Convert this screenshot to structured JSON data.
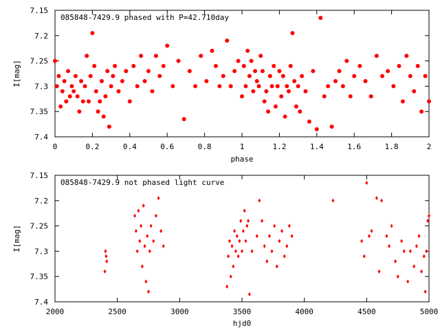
{
  "chart_data": [
    {
      "type": "scatter",
      "title": "085848-7429.9 phased with P=42.710day",
      "xlabel": "phase",
      "ylabel": "I[mag]",
      "xlim": [
        0,
        2
      ],
      "ylim": [
        7.15,
        7.4
      ],
      "y_inverted": true,
      "xticks": [
        "0",
        "0.2",
        "0.4",
        "0.6",
        "0.8",
        "1",
        "1.2",
        "1.4",
        "1.6",
        "1.8",
        "2"
      ],
      "yticks": [
        "7.15",
        "7.2",
        "7.25",
        "7.3",
        "7.35",
        "7.4"
      ],
      "marker": "filled-circle",
      "color": "#ff0000",
      "x": [
        0.0,
        0.01,
        0.02,
        0.03,
        0.04,
        0.05,
        0.06,
        0.07,
        0.08,
        0.09,
        0.1,
        0.11,
        0.12,
        0.13,
        0.14,
        0.15,
        0.16,
        0.17,
        0.18,
        0.19,
        0.2,
        0.21,
        0.22,
        0.23,
        0.24,
        0.25,
        0.26,
        0.27,
        0.28,
        0.29,
        0.3,
        0.31,
        0.32,
        0.34,
        0.36,
        0.38,
        0.4,
        0.42,
        0.44,
        0.46,
        0.48,
        0.5,
        0.52,
        0.54,
        0.56,
        0.58,
        0.6,
        0.63,
        0.66,
        0.69,
        0.72,
        0.75,
        0.78,
        0.81,
        0.84,
        0.86,
        0.88,
        0.9,
        0.92,
        0.94,
        0.96,
        0.98,
        1.0,
        1.01,
        1.02,
        1.03,
        1.04,
        1.05,
        1.06,
        1.07,
        1.08,
        1.09,
        1.1,
        1.11,
        1.12,
        1.13,
        1.14,
        1.15,
        1.16,
        1.17,
        1.18,
        1.19,
        1.2,
        1.21,
        1.22,
        1.23,
        1.24,
        1.25,
        1.26,
        1.27,
        1.28,
        1.29,
        1.3,
        1.31,
        1.32,
        1.34,
        1.36,
        1.38,
        1.4,
        1.42,
        1.44,
        1.46,
        1.48,
        1.5,
        1.52,
        1.54,
        1.56,
        1.58,
        1.6,
        1.63,
        1.66,
        1.69,
        1.72,
        1.75,
        1.78,
        1.81,
        1.84,
        1.86,
        1.88,
        1.9,
        1.92,
        1.94,
        1.96,
        1.98,
        2.0
      ],
      "y": [
        7.25,
        7.3,
        7.28,
        7.34,
        7.31,
        7.29,
        7.33,
        7.27,
        7.32,
        7.3,
        7.31,
        7.28,
        7.32,
        7.35,
        7.29,
        7.33,
        7.3,
        7.24,
        7.33,
        7.28,
        7.195,
        7.26,
        7.31,
        7.35,
        7.33,
        7.29,
        7.36,
        7.32,
        7.27,
        7.38,
        7.3,
        7.28,
        7.26,
        7.31,
        7.29,
        7.27,
        7.33,
        7.26,
        7.3,
        7.24,
        7.29,
        7.27,
        7.31,
        7.24,
        7.28,
        7.26,
        7.22,
        7.3,
        7.25,
        7.365,
        7.27,
        7.3,
        7.24,
        7.29,
        7.23,
        7.26,
        7.3,
        7.28,
        7.21,
        7.3,
        7.27,
        7.25,
        7.32,
        7.26,
        7.3,
        7.23,
        7.28,
        7.25,
        7.31,
        7.27,
        7.29,
        7.3,
        7.24,
        7.27,
        7.33,
        7.31,
        7.35,
        7.28,
        7.3,
        7.26,
        7.34,
        7.3,
        7.27,
        7.32,
        7.28,
        7.36,
        7.3,
        7.31,
        7.26,
        7.195,
        7.29,
        7.34,
        7.3,
        7.35,
        7.28,
        7.31,
        7.37,
        7.27,
        7.385,
        7.165,
        7.32,
        7.3,
        7.38,
        7.29,
        7.27,
        7.3,
        7.25,
        7.32,
        7.28,
        7.26,
        7.29,
        7.32,
        7.24,
        7.28,
        7.27,
        7.3,
        7.26,
        7.33,
        7.24,
        7.28,
        7.31,
        7.26,
        7.35,
        7.28,
        7.33
      ]
    },
    {
      "type": "scatter",
      "title": "085848-7429.9 not phased light curve",
      "xlabel": "hjd0",
      "ylabel": "I[mag]",
      "xlim": [
        2000,
        5000
      ],
      "ylim": [
        7.15,
        7.4
      ],
      "y_inverted": true,
      "xticks": [
        "2000",
        "2500",
        "3000",
        "3500",
        "4000",
        "4500",
        "5000"
      ],
      "yticks": [
        "7.15",
        "7.2",
        "7.25",
        "7.3",
        "7.35",
        "7.4"
      ],
      "marker": "filled-diamond",
      "color": "#ff0000",
      "x": [
        2400,
        2405,
        2410,
        2415,
        2640,
        2650,
        2660,
        2670,
        2680,
        2690,
        2700,
        2710,
        2720,
        2730,
        2740,
        2750,
        2760,
        2770,
        2790,
        2810,
        2830,
        2850,
        2870,
        3380,
        3390,
        3400,
        3410,
        3420,
        3430,
        3440,
        3450,
        3460,
        3470,
        3480,
        3490,
        3500,
        3510,
        3520,
        3530,
        3540,
        3550,
        3560,
        3580,
        3620,
        3640,
        3660,
        3680,
        3700,
        3720,
        3740,
        3760,
        3780,
        3800,
        3820,
        3840,
        3860,
        3880,
        3900,
        4230,
        4460,
        4480,
        4500,
        4520,
        4540,
        4580,
        4600,
        4620,
        4660,
        4680,
        4700,
        4730,
        4750,
        4780,
        4800,
        4830,
        4850,
        4880,
        4900,
        4920,
        4940,
        4960,
        4970,
        4980,
        4990,
        5000
      ],
      "y": [
        7.34,
        7.3,
        7.31,
        7.32,
        7.23,
        7.26,
        7.3,
        7.22,
        7.28,
        7.25,
        7.33,
        7.21,
        7.29,
        7.36,
        7.27,
        7.38,
        7.3,
        7.25,
        7.28,
        7.23,
        7.195,
        7.26,
        7.29,
        7.37,
        7.31,
        7.28,
        7.35,
        7.29,
        7.33,
        7.26,
        7.3,
        7.27,
        7.31,
        7.28,
        7.24,
        7.3,
        7.26,
        7.22,
        7.28,
        7.25,
        7.24,
        7.385,
        7.3,
        7.27,
        7.2,
        7.24,
        7.29,
        7.32,
        7.27,
        7.3,
        7.25,
        7.33,
        7.28,
        7.26,
        7.31,
        7.29,
        7.25,
        7.27,
        7.2,
        7.28,
        7.31,
        7.165,
        7.27,
        7.26,
        7.195,
        7.34,
        7.2,
        7.27,
        7.29,
        7.25,
        7.32,
        7.35,
        7.28,
        7.3,
        7.36,
        7.3,
        7.33,
        7.29,
        7.27,
        7.34,
        7.31,
        7.38,
        7.3,
        7.24,
        7.23
      ]
    }
  ]
}
